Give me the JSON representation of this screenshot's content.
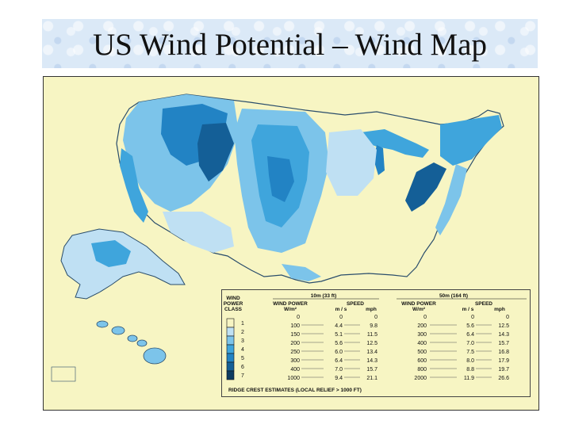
{
  "title": "US Wind Potential – Wind Map",
  "colors": {
    "background": "#ffffff",
    "title_band": "#dbe9f7",
    "map_background": "#f7f5c3",
    "class_1": "#f7f5c3",
    "class_2": "#bfe0f3",
    "class_3": "#7cc4ea",
    "class_4": "#3fa5dc",
    "class_5": "#2283c4",
    "class_6": "#145f97",
    "class_7": "#0d3b61"
  },
  "legend": {
    "class_header": [
      "WIND",
      "POWER",
      "CLASS"
    ],
    "group_10m": "10m (33 ft)",
    "group_50m": "50m (164 ft)",
    "wind_power_label": "WIND POWER",
    "wind_power_unit": "W/m²",
    "speed_label": "SPEED",
    "unit_ms": "m / s",
    "unit_mph": "mph",
    "class_labels": [
      "1",
      "2",
      "3",
      "4",
      "5",
      "6",
      "7"
    ],
    "power_10m": [
      "0",
      "100",
      "150",
      "200",
      "250",
      "300",
      "400",
      "1000"
    ],
    "speed_ms_10m": [
      "0",
      "4.4",
      "5.1",
      "5.6",
      "6.0",
      "6.4",
      "7.0",
      "9.4"
    ],
    "speed_mph_10m": [
      "0",
      "9.8",
      "11.5",
      "12.5",
      "13.4",
      "14.3",
      "15.7",
      "21.1"
    ],
    "power_50m": [
      "0",
      "200",
      "300",
      "400",
      "500",
      "600",
      "800",
      "2000"
    ],
    "speed_ms_50m": [
      "0",
      "5.6",
      "6.4",
      "7.0",
      "7.5",
      "8.0",
      "8.8",
      "11.9"
    ],
    "speed_mph_50m": [
      "0",
      "12.5",
      "14.3",
      "15.7",
      "16.8",
      "17.9",
      "19.7",
      "26.6"
    ],
    "footnote": "RIDGE CREST ESTIMATES (LOCAL RELIEF > 1000 FT)"
  }
}
